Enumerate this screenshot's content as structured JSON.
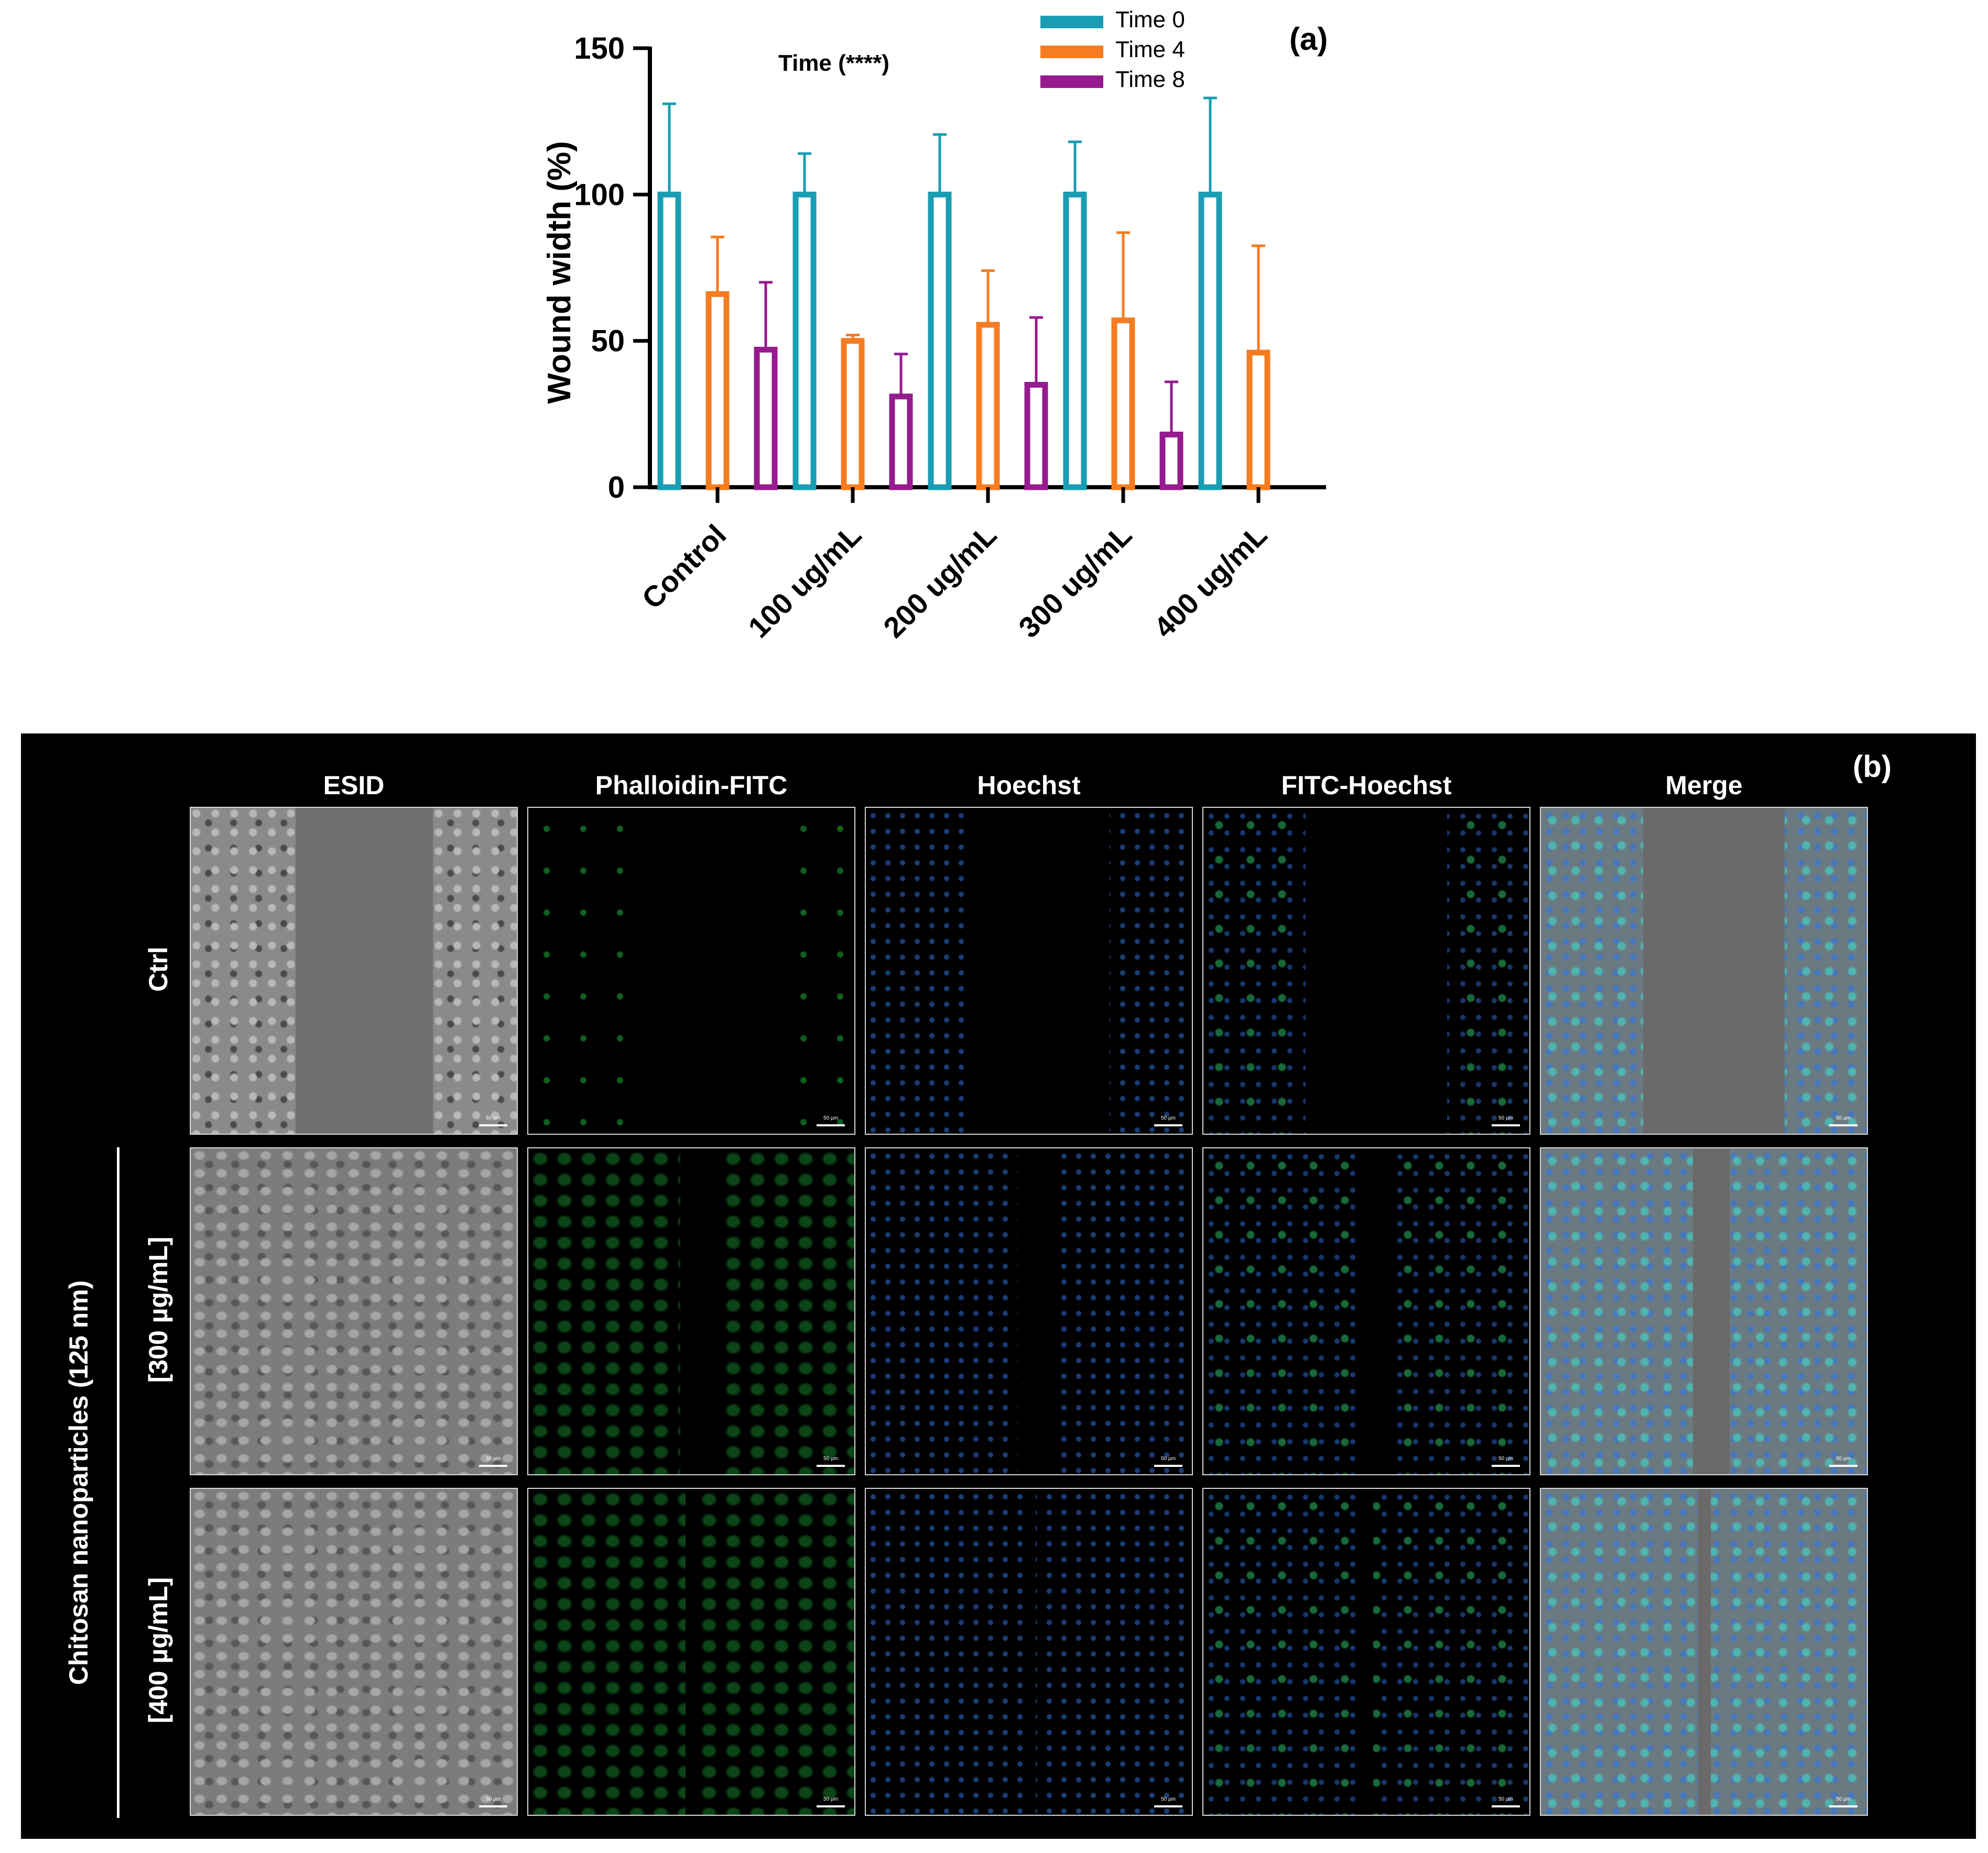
{
  "panel_a": {
    "label": "(a)",
    "annotation": "Time (****)",
    "chart_data": {
      "type": "bar",
      "ylabel": "Wound width (%)",
      "xlabel": "",
      "ylim": [
        0,
        150
      ],
      "yticks": [
        0,
        50,
        100,
        150
      ],
      "categories": [
        "Control",
        "100 ug/mL",
        "200 ug/mL",
        "300 ug/mL",
        "400 ug/mL"
      ],
      "series": [
        {
          "name": "Time 0",
          "color": "#1a9db3",
          "values": [
            100,
            100,
            100,
            100,
            100
          ],
          "errors": [
            31,
            14,
            20.5,
            18,
            33
          ]
        },
        {
          "name": "Time 4",
          "color": "#f57c20",
          "values": [
            66,
            50,
            55.5,
            57,
            46
          ],
          "errors": [
            19.5,
            2,
            18.5,
            30,
            36.5
          ]
        },
        {
          "name": "Time 8",
          "color": "#951b8f",
          "values": [
            47,
            31,
            35,
            18,
            0
          ],
          "errors": [
            23,
            14.5,
            23,
            18,
            0
          ]
        }
      ],
      "legend_position": "top-right",
      "grid": false,
      "bar_style": "hollow"
    }
  },
  "panel_b": {
    "label": "(b)",
    "columns": [
      "ESID",
      "Phalloidin-FITC",
      "Hoechst",
      "FITC-Hoechst",
      "Merge"
    ],
    "rows": [
      "Ctrl",
      "[300 µg/mL]",
      "[400 µg/mL]"
    ],
    "group_label": "Chitosan nanoparticles (125 nm)",
    "scale_bar": "50 µm"
  }
}
